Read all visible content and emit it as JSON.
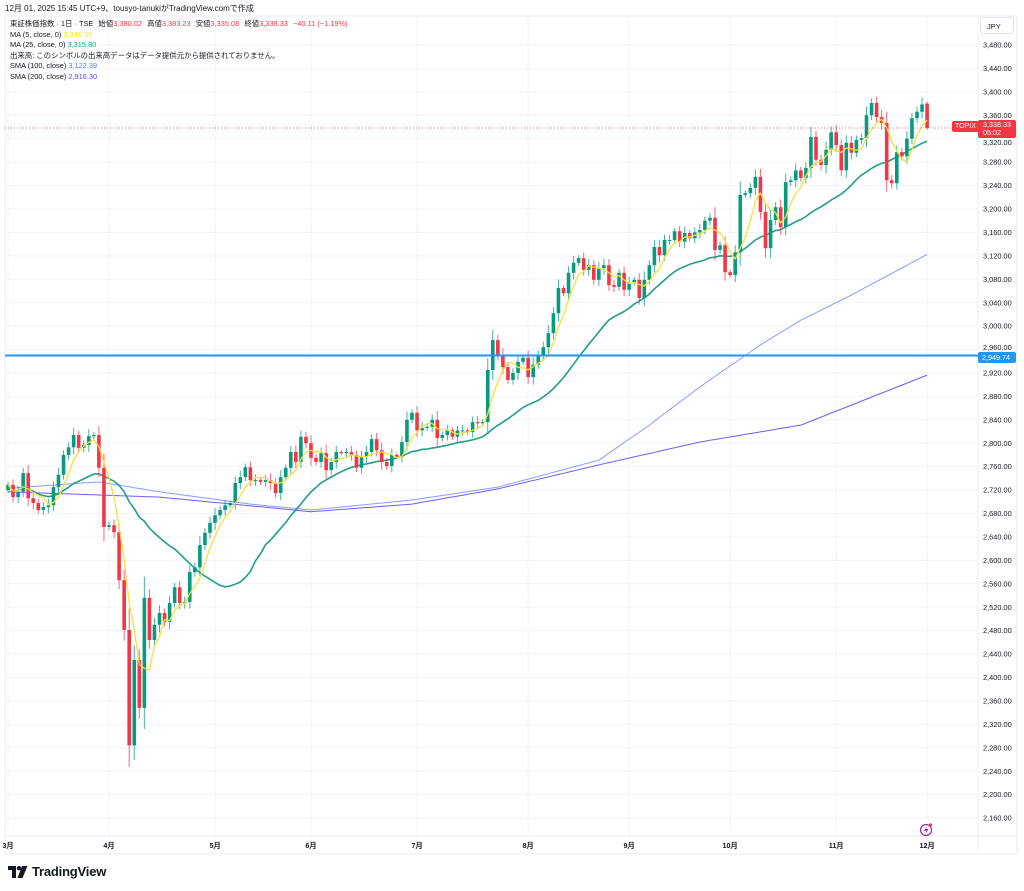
{
  "created_by": "12月 01, 2025 15:45 UTC+9、tousyo-tanukiがTradingView.comで作成",
  "legend": {
    "symbol": "東証株価指数 · 1日 · TSE",
    "open_label": "始値",
    "open": "3,380.02",
    "high_label": "高値",
    "high": "3,383.23",
    "low_label": "安値",
    "low": "3,335.08",
    "close_label": "終値",
    "close": "3,338.33",
    "change": "−40.11 (−1.19%)",
    "ma5_label": "MA (5, close, 0)",
    "ma5_value": "3,346.35",
    "ma25_label": "MA (25, close, 0)",
    "ma25_value": "3,315.80",
    "volume_note": "出来高: このシンボルの出来高データはデータ提供元から提供されておりません。",
    "sma100_label": "SMA (100, close)",
    "sma100_value": "3,122.39",
    "sma200_label": "SMA (200, close)",
    "sma200_value": "2,916.30"
  },
  "currency": "JPY",
  "price_tag": {
    "symbol": "TOPIX",
    "price": "3,338.33",
    "countdown": "05:02"
  },
  "hline_tag": "2,949.74",
  "brand": "TradingView",
  "colors": {
    "up": "#089981",
    "down": "#f23645",
    "ma5": "#f5e13b",
    "ma25": "#1f9e89",
    "sma100": "#8a9bff",
    "sma200": "#6c5df5",
    "hline": "#2196f3"
  },
  "chart_data": {
    "type": "candlestick",
    "title": "東証株価指数 · 1日 · TSE",
    "ylim": [
      2140,
      3500
    ],
    "y_ticks": [
      3480,
      3440,
      3400,
      3360,
      3320,
      3280,
      3240,
      3200,
      3160,
      3120,
      3080,
      3040,
      3000,
      2960,
      2920,
      2880,
      2840,
      2800,
      2760,
      2720,
      2680,
      2640,
      2600,
      2560,
      2520,
      2480,
      2440,
      2400,
      2360,
      2320,
      2280,
      2240,
      2200,
      2160
    ],
    "y_tick_labels": [
      "3,480.00",
      "3,440.00",
      "3,400.00",
      "3,360.00",
      "3,320.00",
      "3,280.00",
      "3,240.00",
      "3,200.00",
      "3,160.00",
      "3,120.00",
      "3,080.00",
      "3,040.00",
      "3,000.00",
      "2,960.00",
      "2,920.00",
      "2,880.00",
      "2,840.00",
      "2,800.00",
      "2,760.00",
      "2,720.00",
      "2,680.00",
      "2,640.00",
      "2,600.00",
      "2,560.00",
      "2,520.00",
      "2,480.00",
      "2,440.00",
      "2,400.00",
      "2,360.00",
      "2,320.00",
      "2,280.00",
      "2,240.00",
      "2,200.00",
      "2,160.00"
    ],
    "x_months": [
      {
        "label": "3月",
        "index": 0
      },
      {
        "label": "4月",
        "index": 20
      },
      {
        "label": "5月",
        "index": 41
      },
      {
        "label": "6月",
        "index": 60
      },
      {
        "label": "7月",
        "index": 81
      },
      {
        "label": "8月",
        "index": 103
      },
      {
        "label": "9月",
        "index": 123
      },
      {
        "label": "10月",
        "index": 143
      },
      {
        "label": "11月",
        "index": 164
      },
      {
        "label": "12月",
        "index": 182
      }
    ],
    "first_open": 2720,
    "last_candle": {
      "open": 3380.02,
      "high": 3383.23,
      "low": 3335.08,
      "close": 3338.33
    },
    "closes": [
      2729,
      2708,
      2717,
      2749,
      2706,
      2698,
      2686,
      2691,
      2694,
      2725,
      2746,
      2780,
      2793,
      2814,
      2792,
      2797,
      2812,
      2814,
      2758,
      2657,
      2660,
      2648,
      2566,
      2481,
      2284,
      2430,
      2348,
      2536,
      2464,
      2490,
      2510,
      2495,
      2527,
      2554,
      2527,
      2529,
      2580,
      2588,
      2626,
      2647,
      2664,
      2677,
      2686,
      2694,
      2698,
      2732,
      2742,
      2759,
      2737,
      2737,
      2734,
      2737,
      2732,
      2715,
      2742,
      2758,
      2785,
      2768,
      2811,
      2800,
      2775,
      2768,
      2783,
      2754,
      2768,
      2785,
      2783,
      2785,
      2780,
      2758,
      2777,
      2785,
      2807,
      2788,
      2768,
      2761,
      2780,
      2777,
      2802,
      2840,
      2852,
      2822,
      2826,
      2828,
      2840,
      2809,
      2814,
      2822,
      2811,
      2822,
      2822,
      2819,
      2836,
      2834,
      2836,
      2925,
      2976,
      2951,
      2930,
      2908,
      2920,
      2939,
      2946,
      2913,
      2934,
      2951,
      2964,
      2988,
      3022,
      3065,
      3056,
      3091,
      3108,
      3116,
      3096,
      3104,
      3079,
      3099,
      3104,
      3070,
      3067,
      3091,
      3062,
      3074,
      3079,
      3048,
      3079,
      3104,
      3135,
      3121,
      3147,
      3147,
      3162,
      3144,
      3159,
      3150,
      3160,
      3164,
      3180,
      3185,
      3130,
      3138,
      3092,
      3087,
      3126,
      3224,
      3227,
      3236,
      3255,
      3195,
      3133,
      3181,
      3203,
      3169,
      3246,
      3249,
      3266,
      3253,
      3270,
      3323,
      3284,
      3275,
      3301,
      3331,
      3309,
      3266,
      3313,
      3296,
      3318,
      3321,
      3360,
      3381,
      3357,
      3347,
      3249,
      3244,
      3297,
      3290,
      3320,
      3355,
      3366,
      3378.44,
      3338.33
    ],
    "sma100_points": [
      [
        0,
        2723
      ],
      [
        18,
        2734
      ],
      [
        30,
        2717
      ],
      [
        48,
        2696
      ],
      [
        60,
        2686
      ],
      [
        80,
        2703
      ],
      [
        97,
        2725
      ],
      [
        117,
        2771
      ],
      [
        127,
        2831
      ],
      [
        137,
        2896
      ],
      [
        149,
        2968
      ],
      [
        157,
        3010
      ],
      [
        167,
        3053
      ],
      [
        182,
        3122.39
      ]
    ],
    "sma200_points": [
      [
        0,
        2717
      ],
      [
        30,
        2708
      ],
      [
        60,
        2683
      ],
      [
        80,
        2696
      ],
      [
        97,
        2722
      ],
      [
        117,
        2763
      ],
      [
        137,
        2802
      ],
      [
        157,
        2831
      ],
      [
        167,
        2865
      ],
      [
        182,
        2916.3
      ]
    ],
    "horizontal_line": 2949.74,
    "last_price": 3338.33,
    "series": [
      "MA 5",
      "MA 25",
      "SMA 100",
      "SMA 200"
    ]
  }
}
